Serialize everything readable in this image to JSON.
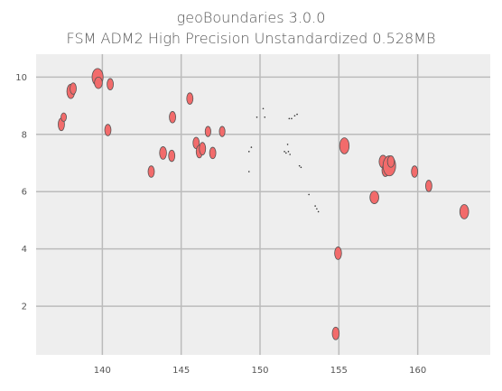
{
  "chart_data": {
    "type": "scatter",
    "title": "geoBoundaries 3.0.0",
    "subtitle": "FSM ADM2 High Precision Unstandardized 0.528MB",
    "xlabel": "",
    "ylabel": "",
    "xlim": [
      135.8,
      164.6
    ],
    "ylim": [
      0.3,
      10.8
    ],
    "xticks": [
      140,
      145,
      150,
      155,
      160
    ],
    "yticks": [
      2,
      4,
      6,
      8,
      10
    ],
    "grid": true,
    "fill_color": "#f26b6b",
    "edge_color": "#555555",
    "background_color": "#eeeeee",
    "grid_color": "#bbbbbb",
    "regions": [
      {
        "x": 137.4,
        "y": 8.35,
        "rx": 0.2,
        "ry": 0.22
      },
      {
        "x": 137.55,
        "y": 8.6,
        "rx": 0.15,
        "ry": 0.15
      },
      {
        "x": 138.0,
        "y": 9.5,
        "rx": 0.25,
        "ry": 0.25
      },
      {
        "x": 138.15,
        "y": 9.6,
        "rx": 0.2,
        "ry": 0.2
      },
      {
        "x": 139.7,
        "y": 10.0,
        "rx": 0.35,
        "ry": 0.3
      },
      {
        "x": 139.75,
        "y": 9.8,
        "rx": 0.25,
        "ry": 0.2
      },
      {
        "x": 140.5,
        "y": 9.75,
        "rx": 0.2,
        "ry": 0.2
      },
      {
        "x": 140.35,
        "y": 8.15,
        "rx": 0.2,
        "ry": 0.2
      },
      {
        "x": 143.1,
        "y": 6.7,
        "rx": 0.2,
        "ry": 0.2
      },
      {
        "x": 143.85,
        "y": 7.35,
        "rx": 0.22,
        "ry": 0.22
      },
      {
        "x": 144.4,
        "y": 7.25,
        "rx": 0.2,
        "ry": 0.2
      },
      {
        "x": 144.45,
        "y": 8.6,
        "rx": 0.2,
        "ry": 0.2
      },
      {
        "x": 145.55,
        "y": 9.25,
        "rx": 0.2,
        "ry": 0.2
      },
      {
        "x": 145.95,
        "y": 7.7,
        "rx": 0.2,
        "ry": 0.2
      },
      {
        "x": 146.15,
        "y": 7.4,
        "rx": 0.2,
        "ry": 0.22
      },
      {
        "x": 146.35,
        "y": 7.5,
        "rx": 0.2,
        "ry": 0.22
      },
      {
        "x": 146.7,
        "y": 8.1,
        "rx": 0.18,
        "ry": 0.18
      },
      {
        "x": 147.0,
        "y": 7.35,
        "rx": 0.2,
        "ry": 0.2
      },
      {
        "x": 147.6,
        "y": 8.1,
        "rx": 0.18,
        "ry": 0.18
      },
      {
        "x": 155.35,
        "y": 7.6,
        "rx": 0.3,
        "ry": 0.28
      },
      {
        "x": 157.25,
        "y": 5.8,
        "rx": 0.28,
        "ry": 0.22
      },
      {
        "x": 157.8,
        "y": 7.05,
        "rx": 0.25,
        "ry": 0.22
      },
      {
        "x": 157.95,
        "y": 6.75,
        "rx": 0.22,
        "ry": 0.22
      },
      {
        "x": 158.2,
        "y": 6.9,
        "rx": 0.4,
        "ry": 0.35
      },
      {
        "x": 158.3,
        "y": 7.05,
        "rx": 0.22,
        "ry": 0.2
      },
      {
        "x": 159.8,
        "y": 6.7,
        "rx": 0.2,
        "ry": 0.2
      },
      {
        "x": 160.7,
        "y": 6.2,
        "rx": 0.2,
        "ry": 0.2
      },
      {
        "x": 162.95,
        "y": 5.3,
        "rx": 0.28,
        "ry": 0.25
      },
      {
        "x": 154.95,
        "y": 3.85,
        "rx": 0.22,
        "ry": 0.22
      },
      {
        "x": 154.8,
        "y": 1.05,
        "rx": 0.22,
        "ry": 0.22
      }
    ],
    "atolls": [
      {
        "x": 149.3,
        "y": 7.4
      },
      {
        "x": 149.45,
        "y": 7.55
      },
      {
        "x": 149.3,
        "y": 6.7
      },
      {
        "x": 149.8,
        "y": 8.6
      },
      {
        "x": 150.2,
        "y": 8.9
      },
      {
        "x": 150.3,
        "y": 8.6
      },
      {
        "x": 151.55,
        "y": 7.4
      },
      {
        "x": 151.65,
        "y": 7.35
      },
      {
        "x": 151.8,
        "y": 7.4
      },
      {
        "x": 151.9,
        "y": 7.3
      },
      {
        "x": 151.75,
        "y": 7.65
      },
      {
        "x": 151.85,
        "y": 8.55
      },
      {
        "x": 152.0,
        "y": 8.55
      },
      {
        "x": 152.2,
        "y": 8.65
      },
      {
        "x": 152.35,
        "y": 8.7
      },
      {
        "x": 152.5,
        "y": 6.9
      },
      {
        "x": 152.6,
        "y": 6.85
      },
      {
        "x": 153.1,
        "y": 5.9
      },
      {
        "x": 153.5,
        "y": 5.5
      },
      {
        "x": 153.6,
        "y": 5.4
      },
      {
        "x": 153.7,
        "y": 5.3
      }
    ]
  }
}
